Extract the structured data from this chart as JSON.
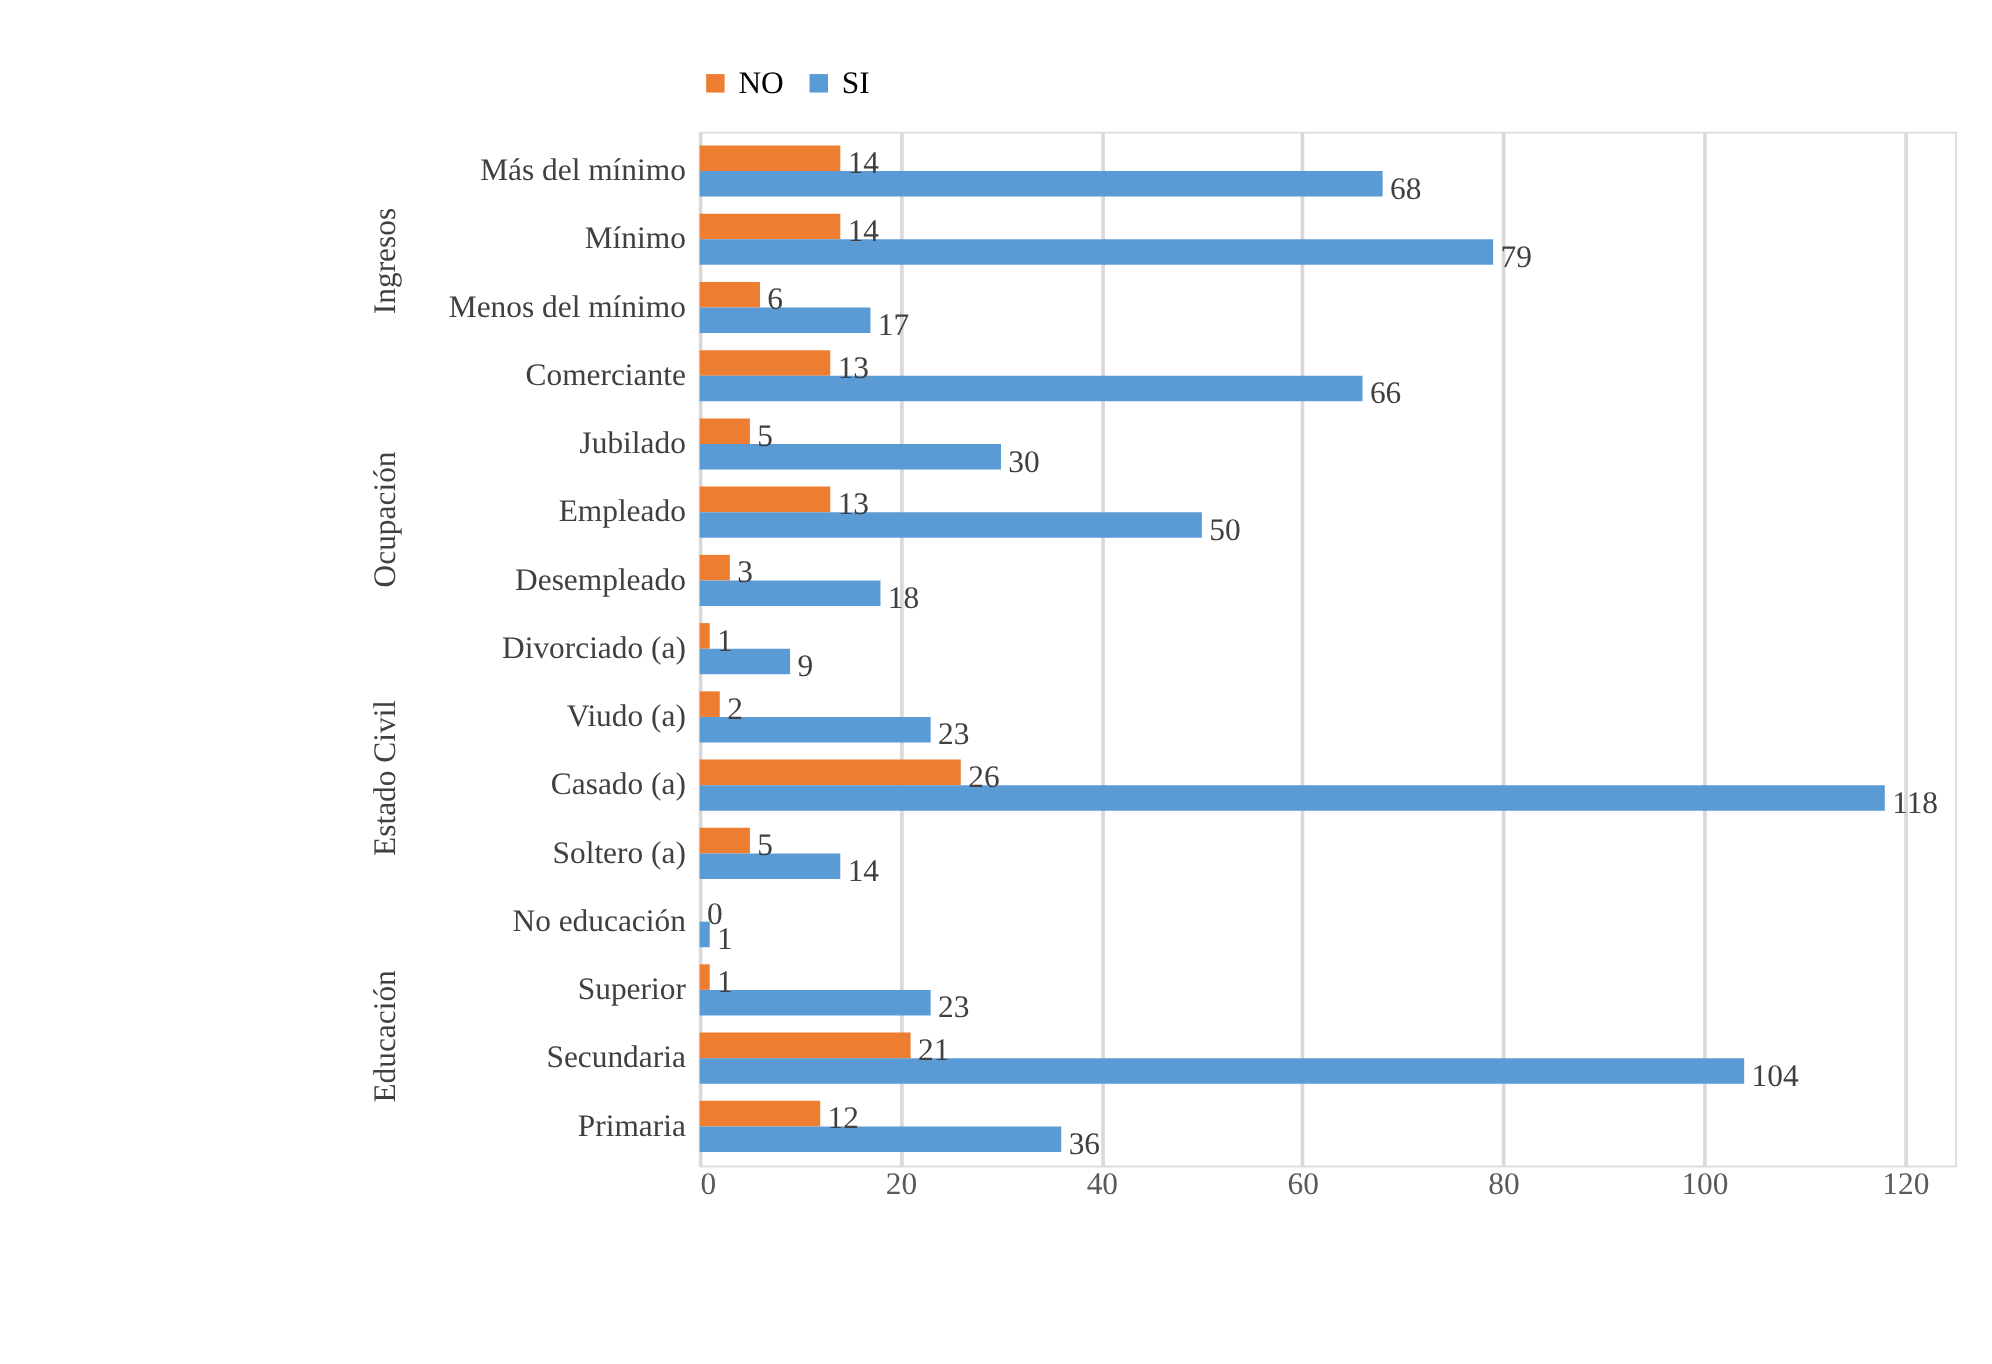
{
  "chart_data": {
    "type": "bar",
    "orientation": "horizontal",
    "categories": [
      "Más del mínimo",
      "Mínimo",
      "Menos del mínimo",
      "Comerciante",
      "Jubilado",
      "Empleado",
      "Desempleado",
      "Divorciado (a)",
      "Viudo (a)",
      "Casado (a)",
      "Soltero (a)",
      "No educación",
      "Superior",
      "Secundaria",
      "Primaria"
    ],
    "series": [
      {
        "name": "NO",
        "color": "#ed7d31",
        "values": [
          14,
          14,
          6,
          13,
          5,
          13,
          3,
          1,
          2,
          26,
          5,
          0,
          1,
          21,
          12
        ]
      },
      {
        "name": "SI",
        "color": "#5b9bd5",
        "values": [
          68,
          79,
          17,
          66,
          30,
          50,
          18,
          9,
          23,
          118,
          14,
          1,
          23,
          104,
          36
        ]
      }
    ],
    "xlim": [
      0,
      125
    ],
    "xticks": [
      0,
      20,
      40,
      60,
      80,
      100,
      120
    ],
    "grid": "x",
    "legend": "top",
    "data_labels": true,
    "annotations": [
      "Ingresos",
      "Ocupación",
      "Estado Civil",
      "Educación"
    ]
  }
}
